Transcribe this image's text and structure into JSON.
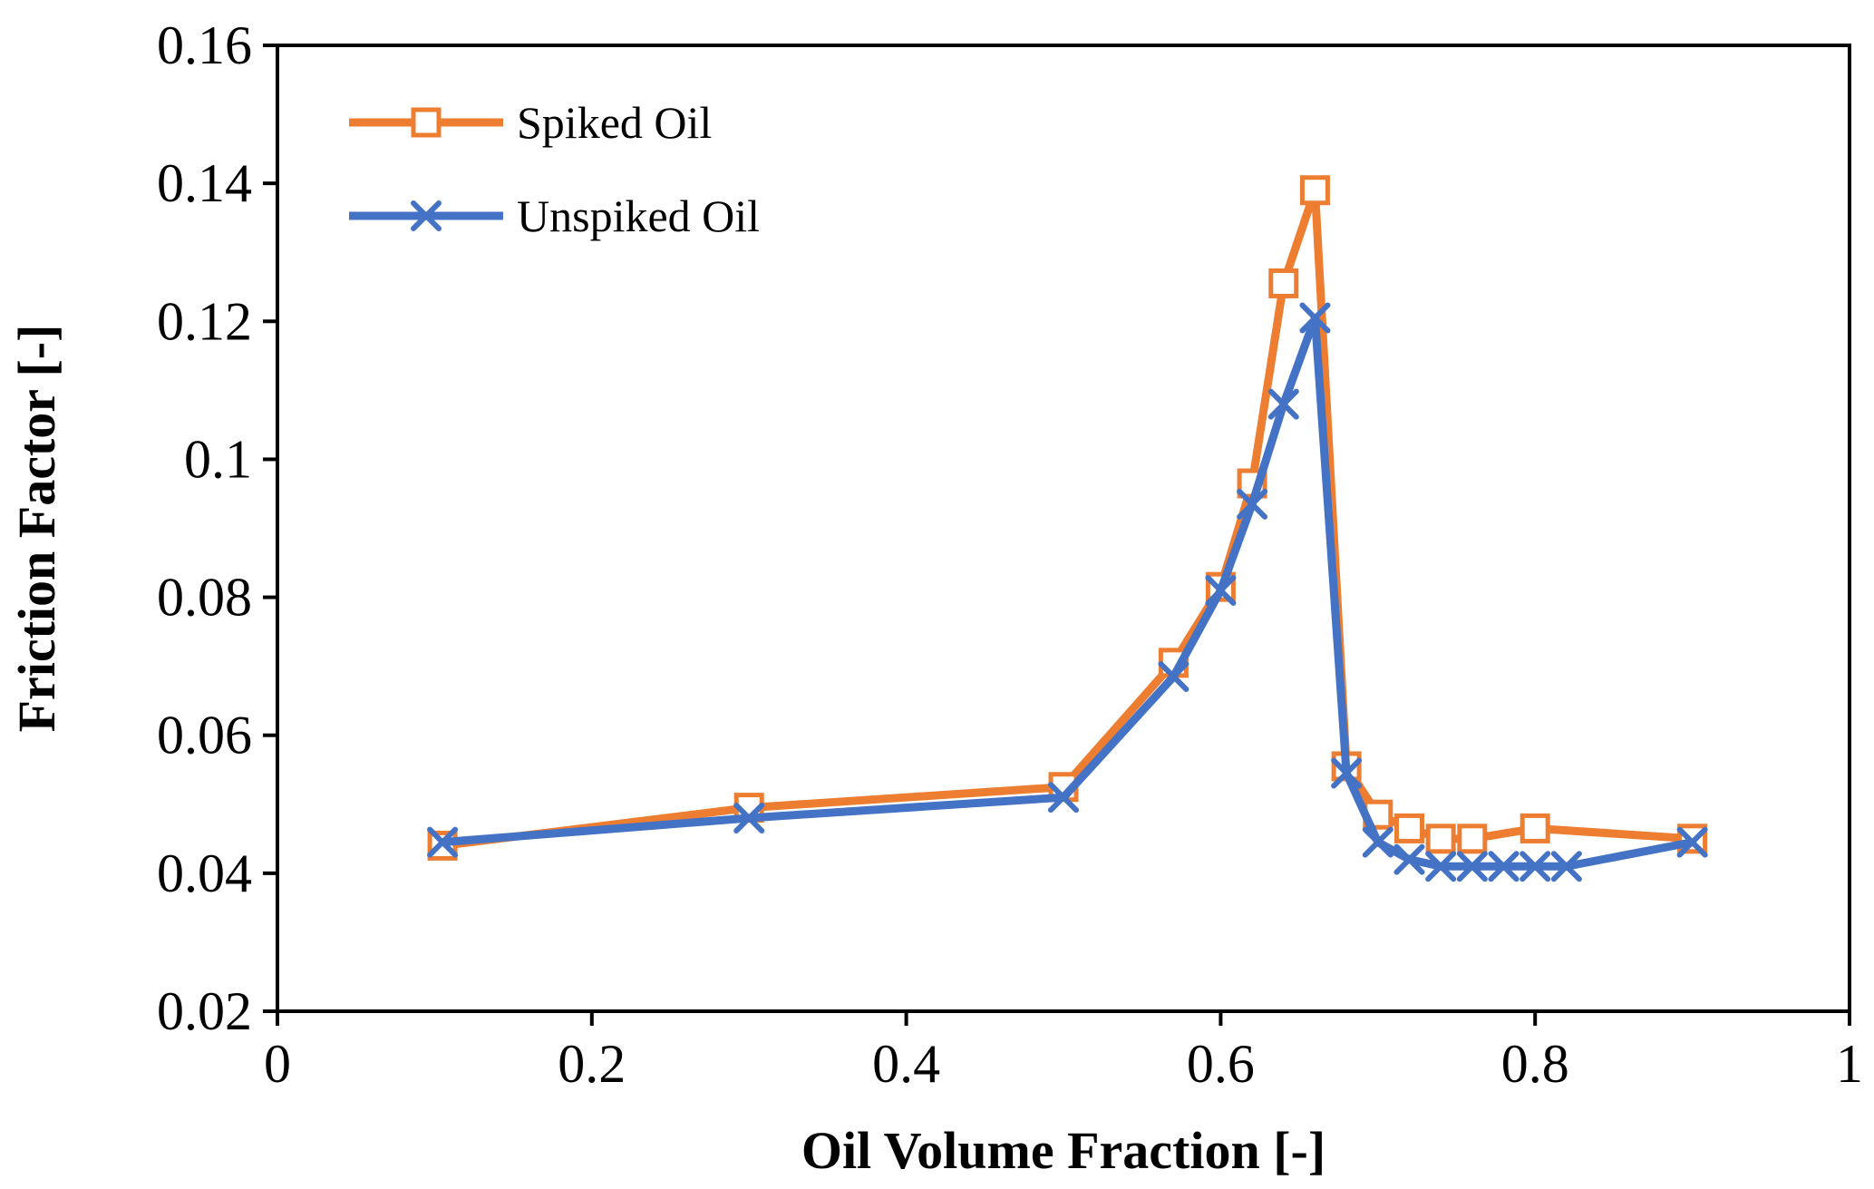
{
  "chart_data": {
    "type": "line",
    "title": "",
    "xlabel": "Oil Volume Fraction [-]",
    "ylabel": "Friction Factor [-]",
    "xlim": [
      0,
      1
    ],
    "ylim": [
      0.02,
      0.16
    ],
    "xticks": [
      0,
      0.2,
      0.4,
      0.6,
      0.8,
      1
    ],
    "xtick_labels": [
      "0",
      "0.2",
      "0.4",
      "0.6",
      "0.8",
      "1"
    ],
    "yticks": [
      0.02,
      0.04,
      0.06,
      0.08,
      0.1,
      0.12,
      0.14,
      0.16
    ],
    "ytick_labels": [
      "0.02",
      "0.04",
      "0.06",
      "0.08",
      "0.1",
      "0.12",
      "0.14",
      "0.16"
    ],
    "grid": false,
    "legend_position": "top-left",
    "series": [
      {
        "name": "Spiked Oil",
        "color": "#ED7D31",
        "marker": "square",
        "x": [
          0.105,
          0.3,
          0.5,
          0.57,
          0.6,
          0.62,
          0.64,
          0.66,
          0.68,
          0.7,
          0.72,
          0.74,
          0.76,
          0.8,
          0.9
        ],
        "y": [
          0.044,
          0.0495,
          0.0525,
          0.0705,
          0.0815,
          0.0965,
          0.1255,
          0.139,
          0.0555,
          0.0485,
          0.0465,
          0.045,
          0.045,
          0.0465,
          0.045
        ]
      },
      {
        "name": "Unspiked Oil",
        "color": "#4472C4",
        "marker": "x",
        "x": [
          0.105,
          0.3,
          0.5,
          0.57,
          0.6,
          0.62,
          0.64,
          0.66,
          0.68,
          0.7,
          0.72,
          0.74,
          0.76,
          0.78,
          0.8,
          0.82,
          0.9
        ],
        "y": [
          0.0445,
          0.048,
          0.051,
          0.0685,
          0.081,
          0.0935,
          0.108,
          0.1205,
          0.0545,
          0.0445,
          0.042,
          0.041,
          0.041,
          0.041,
          0.041,
          0.041,
          0.0445
        ]
      }
    ]
  }
}
